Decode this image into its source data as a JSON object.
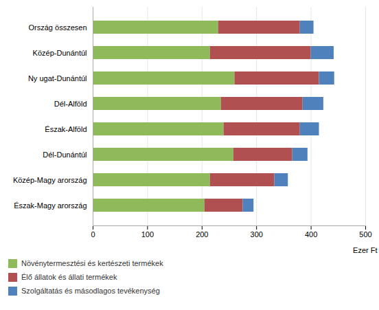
{
  "chart_data": {
    "type": "bar",
    "orientation": "horizontal",
    "stacked": true,
    "categories": [
      "Ország összesen",
      "Közép-Dunántúl",
      "Ny ugat-Dunántúl",
      "Dél-Alföld",
      "Észak-Alföld",
      "Dél-Dunántúl",
      "Közép-Magy arország",
      "Észak-Magy arország"
    ],
    "series": [
      {
        "name": "Növénytermesztési és kertészeti termékek",
        "color": "#8fba5a",
        "values": [
          230,
          215,
          260,
          235,
          240,
          258,
          215,
          205
        ]
      },
      {
        "name": "Élő állatok és állati termékek",
        "color": "#b05050",
        "values": [
          150,
          185,
          155,
          150,
          140,
          108,
          118,
          70
        ]
      },
      {
        "name": "Szolgáltatás és másodlagos tevékenység",
        "color": "#4f81bd",
        "values": [
          25,
          42,
          28,
          38,
          35,
          28,
          25,
          20
        ]
      }
    ],
    "xlabel": "Ezer Ft",
    "xlim": [
      0,
      500
    ],
    "xticks": [
      0,
      100,
      200,
      300,
      400,
      500
    ],
    "grid": true,
    "legend": "lower left"
  }
}
